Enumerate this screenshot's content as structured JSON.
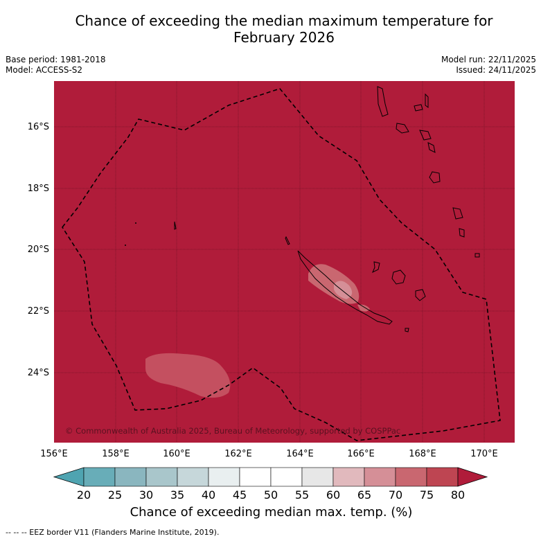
{
  "header": {
    "title_line1": "Chance of exceeding the median maximum temperature for",
    "title_line2": "February 2026",
    "base_period": "Base period: 1981-2018",
    "model": "Model: ACCESS-S2",
    "model_run": "Model run: 22/11/2025",
    "issued": "Issued: 24/11/2025"
  },
  "map": {
    "background_color": "#b01c3a",
    "lat_labels": [
      "16°S",
      "18°S",
      "20°S",
      "22°S",
      "24°S"
    ],
    "lon_labels": [
      "156°E",
      "158°E",
      "160°E",
      "162°E",
      "164°E",
      "166°E",
      "168°E",
      "170°E"
    ],
    "copyright": "© Commonwealth of Australia 2025, Bureau of Meteorology, supported by COSPPac"
  },
  "colorbar": {
    "ticks": [
      "20",
      "25",
      "30",
      "35",
      "40",
      "45",
      "50",
      "55",
      "60",
      "65",
      "70",
      "75",
      "80"
    ],
    "colors": [
      "#68adb8",
      "#8ab6bf",
      "#a9c6cb",
      "#c6d7da",
      "#e9eff0",
      "#ffffff",
      "#ffffff",
      "#e7e7e7",
      "#e1b9bd",
      "#d58f97",
      "#c96770",
      "#be4552"
    ],
    "low_extend_color": "#4fa4b1",
    "high_extend_color": "#b01c3a",
    "label": "Chance of exceeding median max. temp. (%)"
  },
  "legend": {
    "eez_line": "--  --  -- EEZ border V11 (Flanders Marine Institute, 2019)."
  }
}
